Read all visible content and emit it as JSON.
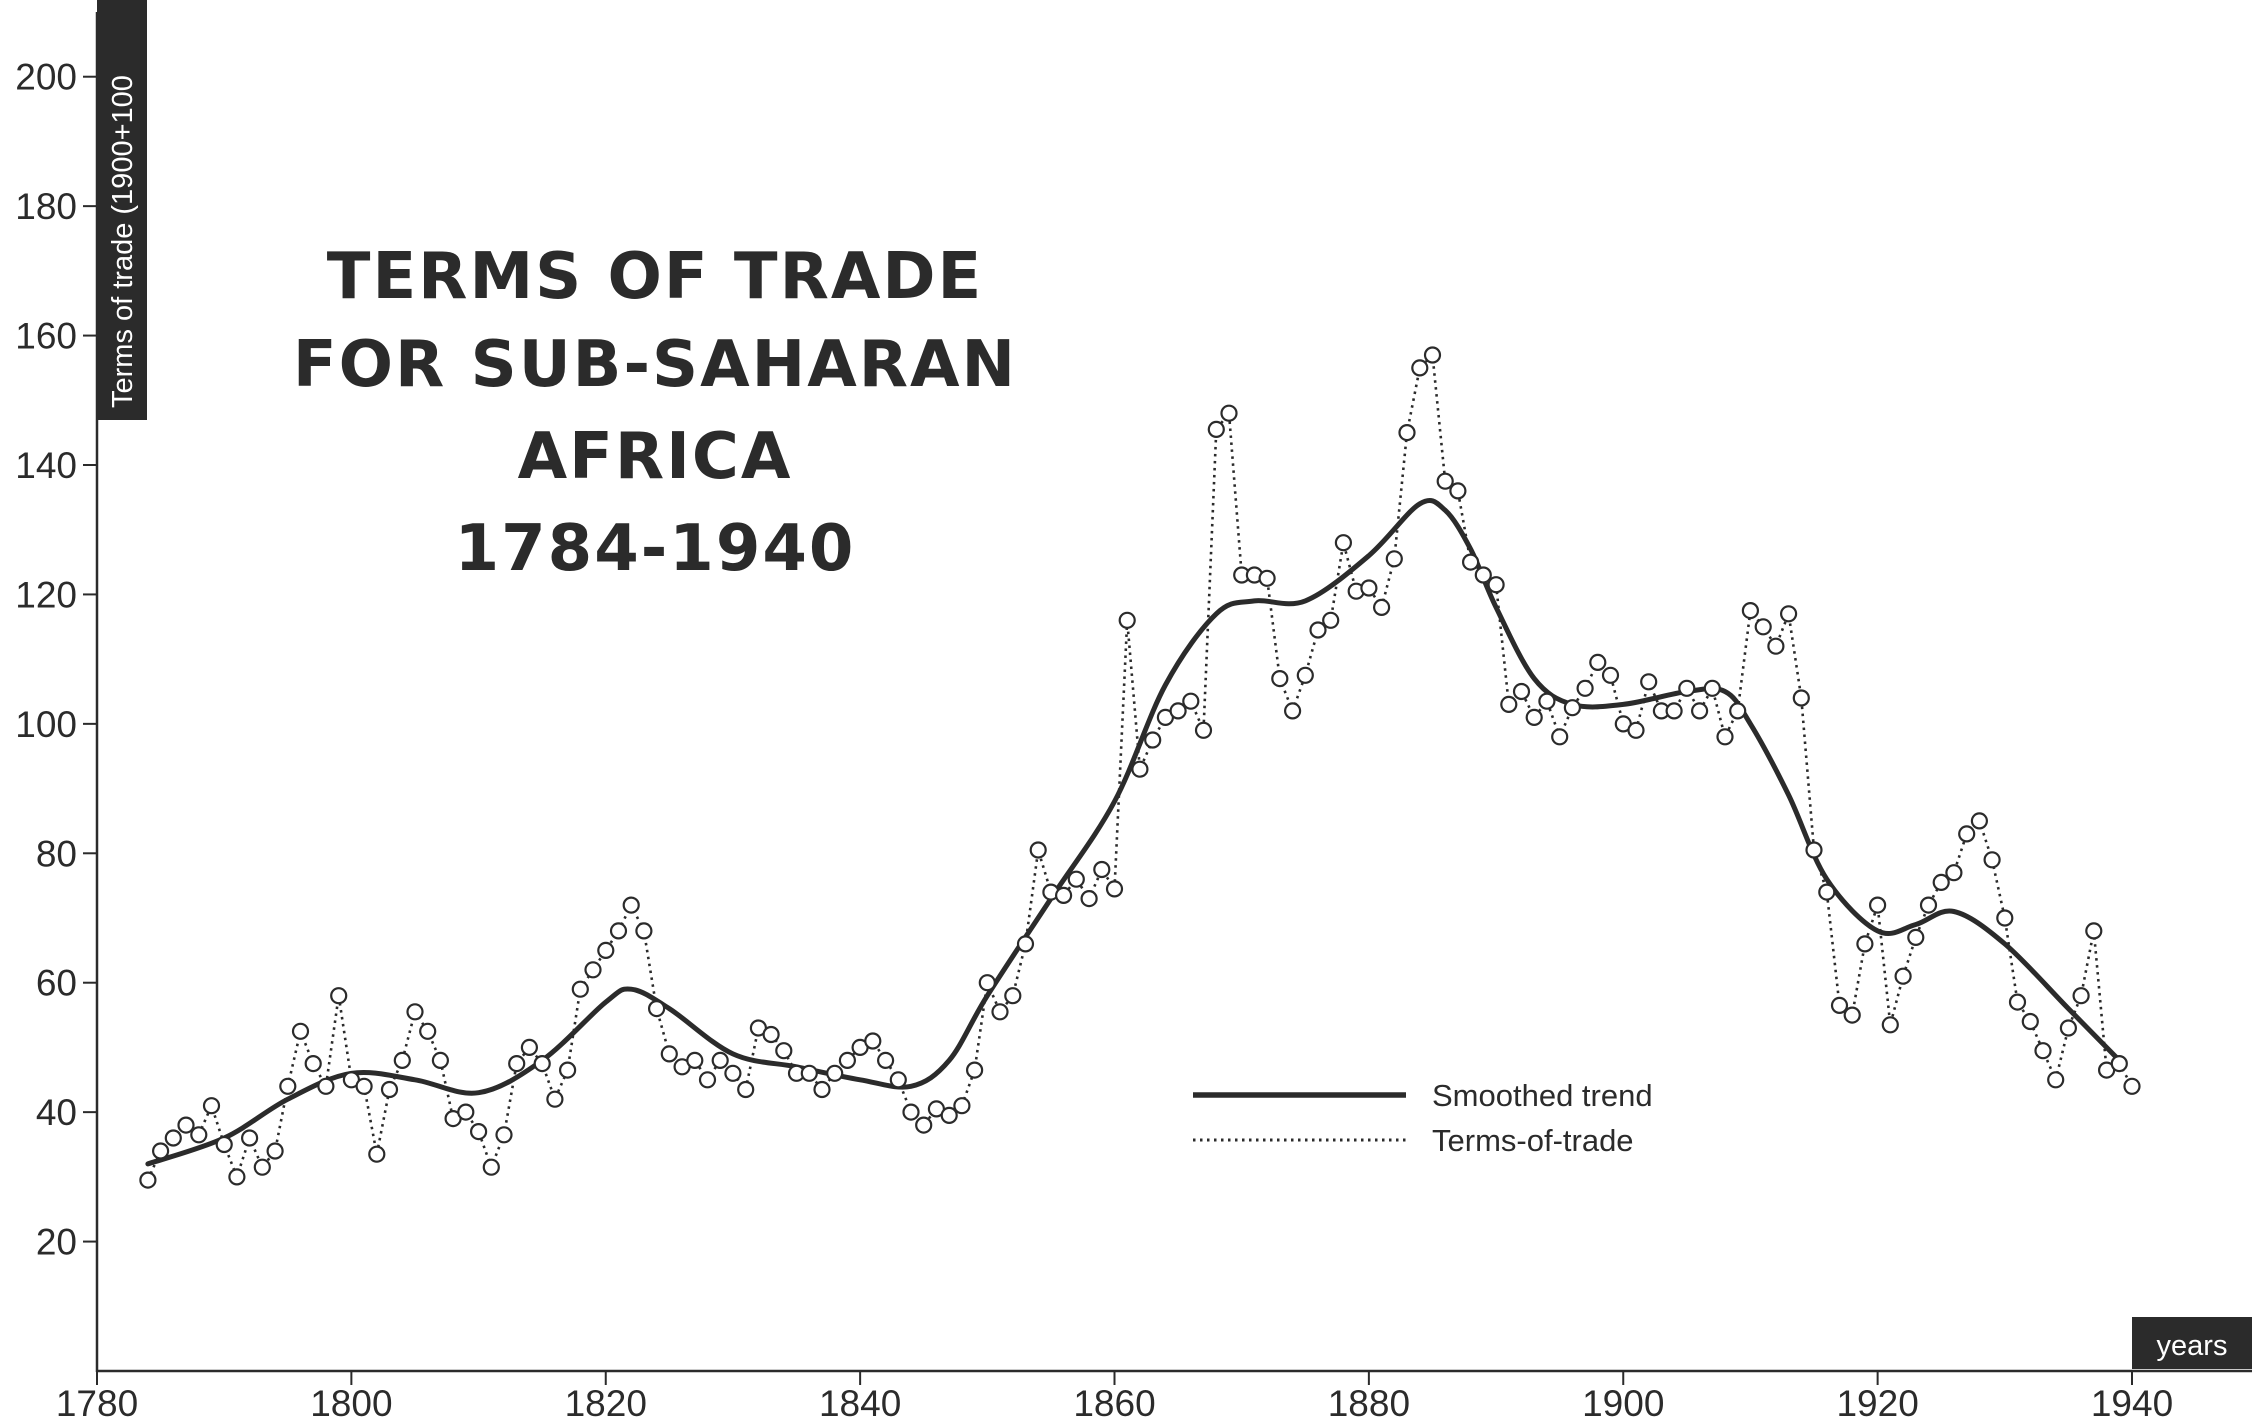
{
  "colors": {
    "ink": "#2b2b2b",
    "background": "#ffffff",
    "label_box": "#2b2b2b",
    "label_box_text": "#ffffff"
  },
  "chart_data": {
    "type": "line",
    "title_lines": [
      "TERMS OF TRADE",
      "FOR SUB-SAHARAN",
      "AFRICA",
      "1784-1940"
    ],
    "ylabel": "Terms of trade (1900+100",
    "xlabel": "years",
    "xlim": [
      1780,
      1940
    ],
    "ylim": [
      0,
      210
    ],
    "x_ticks": [
      1780,
      1800,
      1820,
      1840,
      1860,
      1880,
      1900,
      1920,
      1940
    ],
    "y_ticks": [
      20,
      40,
      60,
      80,
      100,
      120,
      140,
      160,
      180,
      200
    ],
    "grid": false,
    "legend_position": "bottom-center",
    "legend": [
      "Smoothed trend",
      "Terms-of-trade"
    ],
    "series": [
      {
        "name": "Smoothed trend",
        "style": "solid",
        "x": [
          1784,
          1790,
          1795,
          1800,
          1805,
          1810,
          1815,
          1820,
          1822,
          1825,
          1830,
          1835,
          1840,
          1844,
          1847,
          1850,
          1855,
          1860,
          1864,
          1868,
          1871,
          1875,
          1880,
          1884,
          1886,
          1888,
          1890,
          1893,
          1896,
          1900,
          1905,
          1908,
          1910,
          1913,
          1916,
          1920,
          1923,
          1926,
          1930,
          1935,
          1939
        ],
        "values": [
          32,
          36,
          42,
          46,
          45,
          43,
          48,
          57,
          59,
          56,
          49,
          47,
          45,
          44,
          48,
          58,
          73,
          88,
          106,
          117,
          119,
          119,
          126,
          134,
          133,
          127,
          118,
          107,
          103,
          103,
          105,
          105,
          100,
          89,
          76,
          68,
          69,
          71,
          66,
          56,
          48
        ]
      },
      {
        "name": "Terms-of-trade",
        "style": "dotted",
        "x": [
          1784,
          1785,
          1786,
          1787,
          1788,
          1789,
          1790,
          1791,
          1792,
          1793,
          1794,
          1795,
          1796,
          1797,
          1798,
          1799,
          1800,
          1801,
          1802,
          1803,
          1804,
          1805,
          1806,
          1807,
          1808,
          1809,
          1810,
          1811,
          1812,
          1813,
          1814,
          1815,
          1816,
          1817,
          1818,
          1819,
          1820,
          1821,
          1822,
          1823,
          1824,
          1825,
          1826,
          1827,
          1828,
          1829,
          1830,
          1831,
          1832,
          1833,
          1834,
          1835,
          1836,
          1837,
          1838,
          1839,
          1840,
          1841,
          1842,
          1843,
          1844,
          1845,
          1846,
          1847,
          1848,
          1849,
          1850,
          1851,
          1852,
          1853,
          1854,
          1855,
          1856,
          1857,
          1858,
          1859,
          1860,
          1861,
          1862,
          1863,
          1864,
          1865,
          1866,
          1867,
          1868,
          1869,
          1870,
          1871,
          1872,
          1873,
          1874,
          1875,
          1876,
          1877,
          1878,
          1879,
          1880,
          1881,
          1882,
          1883,
          1884,
          1885,
          1886,
          1887,
          1888,
          1889,
          1890,
          1891,
          1892,
          1893,
          1894,
          1895,
          1896,
          1897,
          1898,
          1899,
          1900,
          1901,
          1902,
          1903,
          1904,
          1905,
          1906,
          1907,
          1908,
          1909,
          1910,
          1911,
          1912,
          1913,
          1914,
          1915,
          1916,
          1917,
          1918,
          1919,
          1920,
          1921,
          1922,
          1923,
          1924,
          1925,
          1926,
          1927,
          1928,
          1929,
          1930,
          1931,
          1932,
          1933,
          1934,
          1935,
          1936,
          1937,
          1938,
          1939,
          1940
        ],
        "values": [
          29.5,
          34,
          36,
          38,
          36.5,
          41,
          35,
          30,
          36,
          31.5,
          34,
          44,
          52.5,
          47.5,
          44,
          58,
          45,
          44,
          33.5,
          43.5,
          48,
          55.5,
          52.5,
          48,
          39,
          40,
          37,
          31.5,
          36.5,
          47.5,
          50,
          47.5,
          42,
          46.5,
          59,
          62,
          65,
          68,
          72,
          68,
          56,
          49,
          47,
          48,
          45,
          48,
          46,
          43.5,
          53,
          52,
          49.5,
          46,
          46,
          43.5,
          46,
          48,
          50,
          51,
          48,
          45,
          40,
          38,
          40.5,
          39.5,
          41,
          46.5,
          60,
          55.5,
          58,
          66,
          80.5,
          74,
          73.5,
          76,
          73,
          77.5,
          74.5,
          116,
          93,
          97.5,
          101,
          102,
          103.5,
          99,
          145.5,
          148,
          123,
          123,
          122.5,
          107,
          102,
          107.5,
          114.5,
          116,
          128,
          120.5,
          121,
          118,
          125.5,
          145,
          155,
          157,
          137.5,
          136,
          125,
          123,
          121.5,
          103,
          105,
          101,
          103.5,
          98,
          102.5,
          105.5,
          109.5,
          107.5,
          100,
          99,
          106.5,
          102,
          102,
          105.5,
          102,
          105.5,
          98,
          102,
          117.5,
          115,
          112,
          117,
          104,
          80.5,
          74,
          56.5,
          55,
          66,
          72,
          53.5,
          61,
          67,
          72,
          75.5,
          77,
          83,
          85,
          79,
          70,
          57,
          54,
          49.5,
          45,
          53,
          58,
          68,
          46.5,
          47.5,
          44
        ]
      }
    ]
  }
}
